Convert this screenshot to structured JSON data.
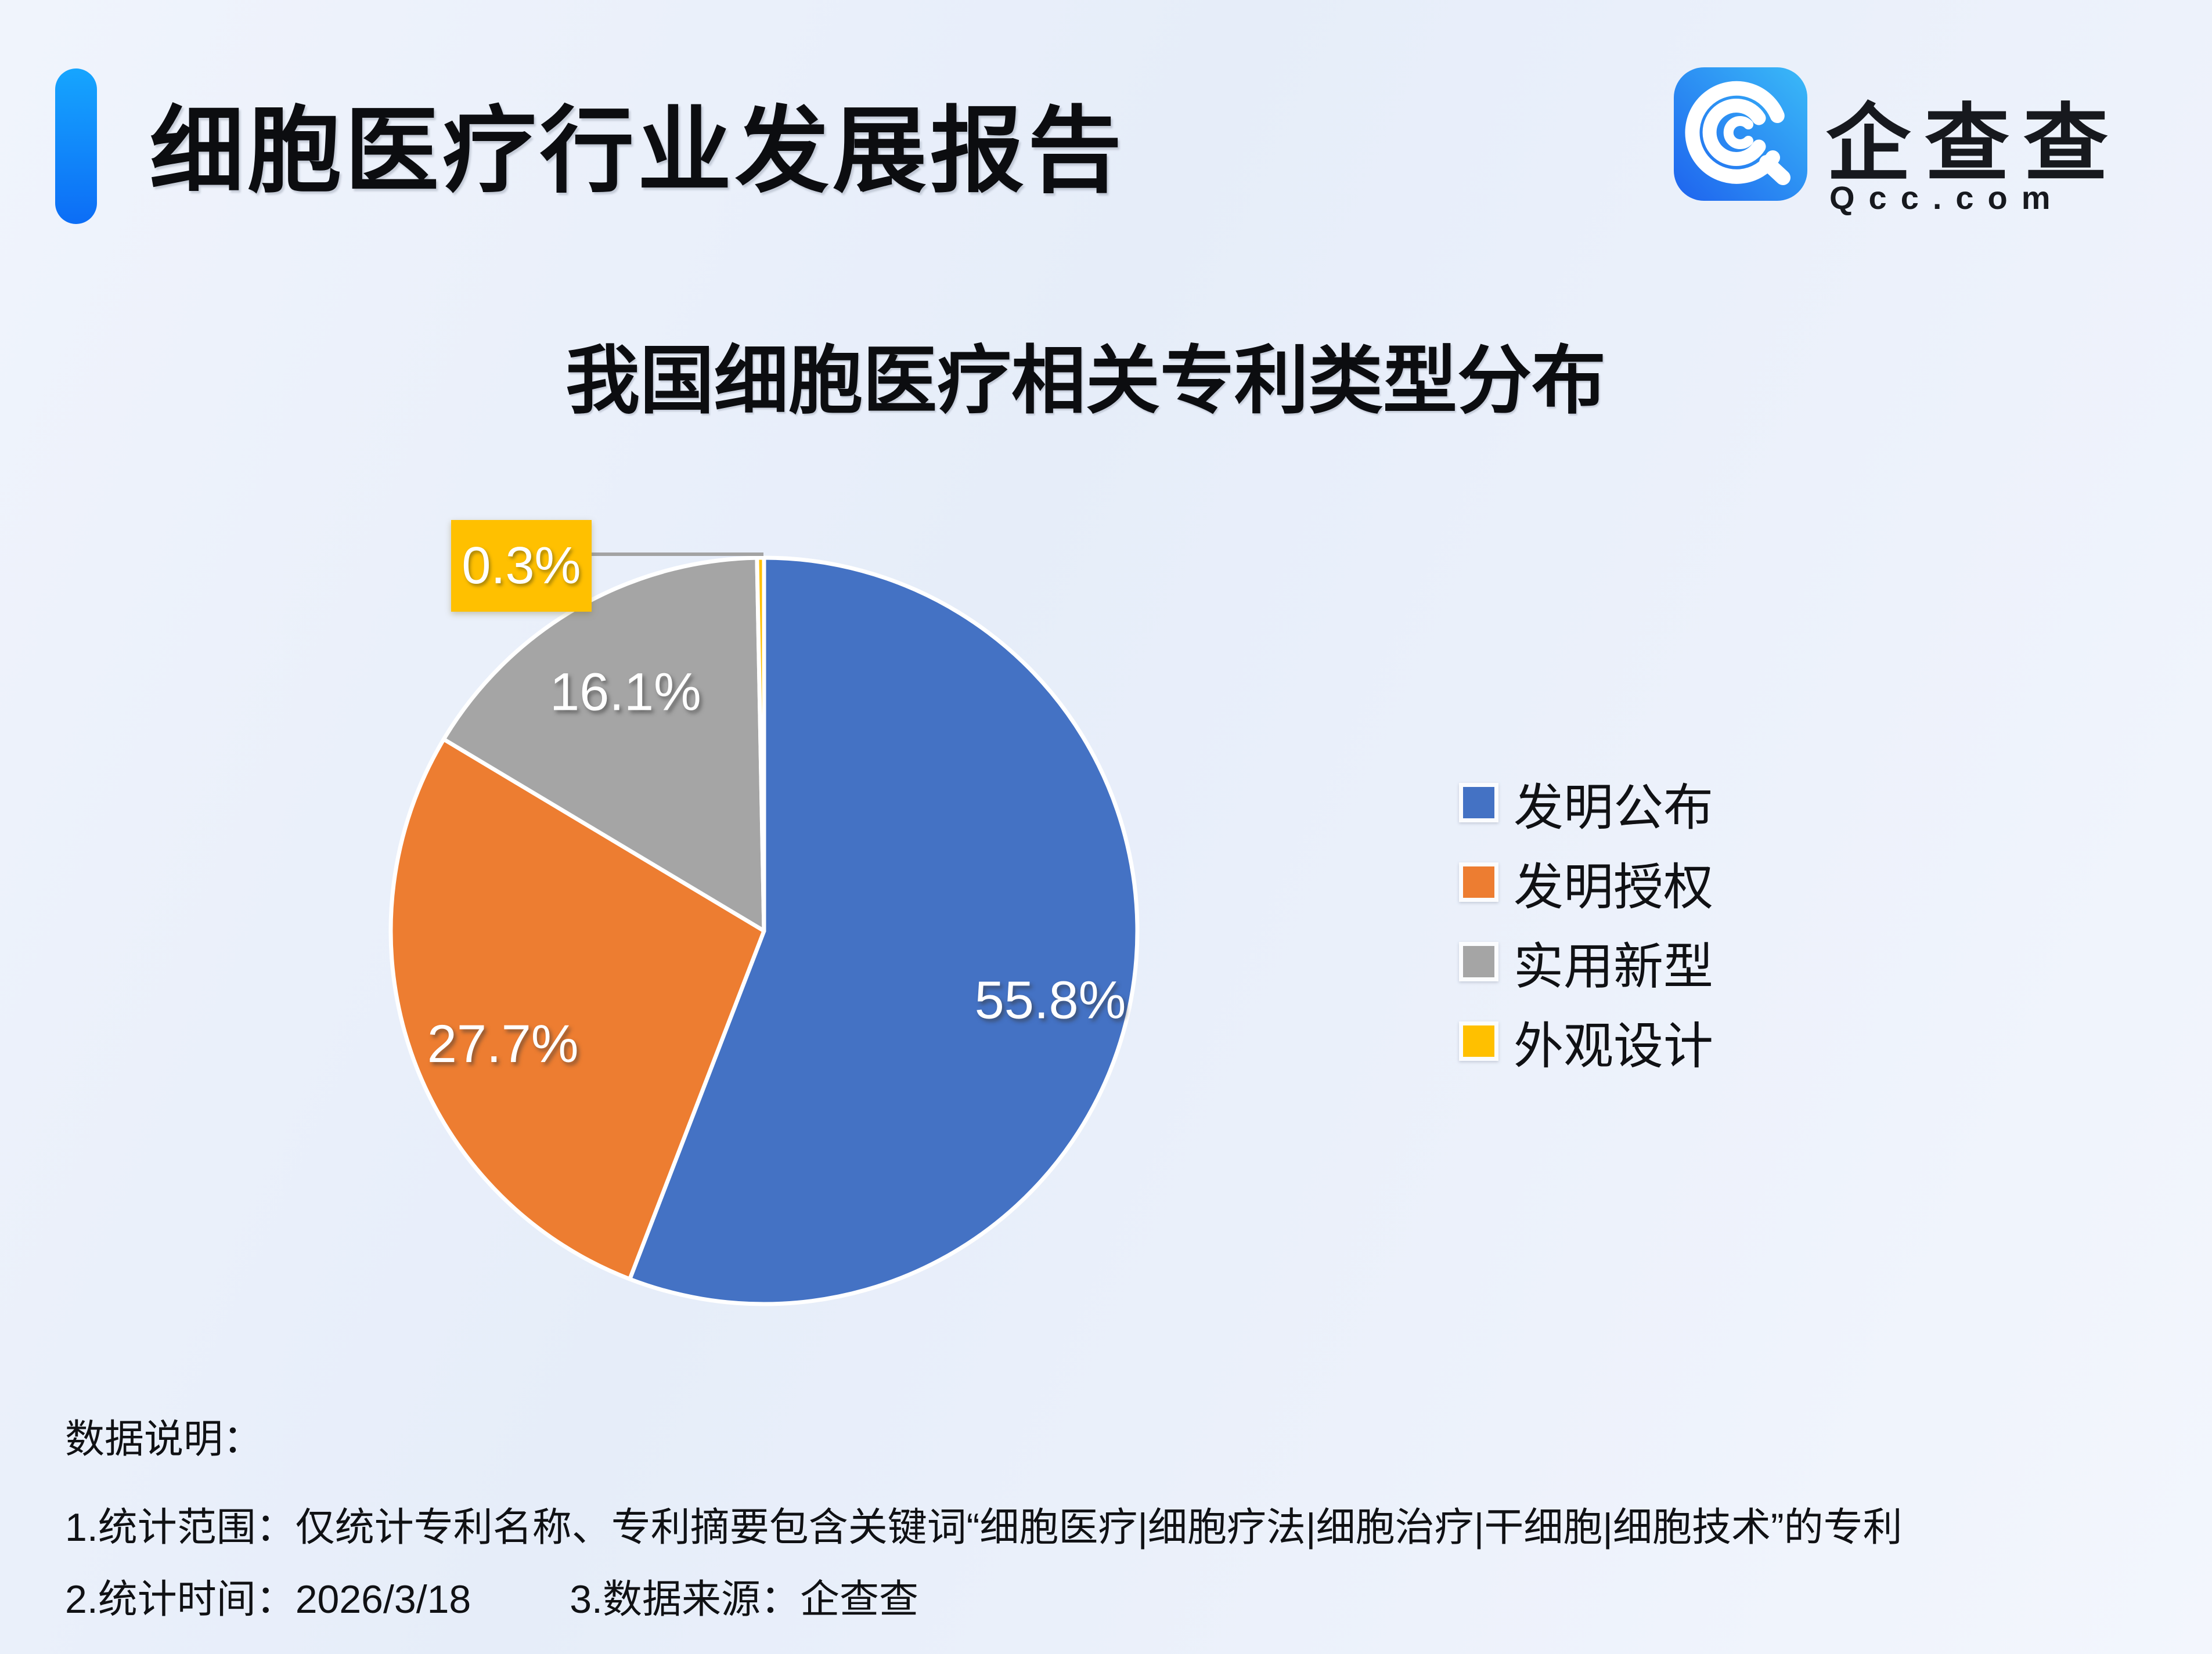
{
  "header": {
    "title": "细胞医疗行业发展报告",
    "accent_bar_top_color": "#16A5FE",
    "accent_bar_bottom_color": "#0C6DF6"
  },
  "logo": {
    "brand_name": "企查查",
    "brand_domain": "Qcc.com",
    "tile_gradient_left": "#1E63EE",
    "tile_gradient_right": "#3ABAF8"
  },
  "chart_data": {
    "type": "pie",
    "title": "我国细胞医疗相关专利类型分布",
    "unit": "percent",
    "direction": "clockwise",
    "start_angle_deg": 0,
    "legend_position": "right",
    "slice_border_color": "#FFFFFF",
    "series": [
      {
        "label": "发明公布",
        "value": 55.8,
        "display": "55.8%",
        "color": "#4472C4"
      },
      {
        "label": "发明授权",
        "value": 27.7,
        "display": "27.7%",
        "color": "#ED7D31"
      },
      {
        "label": "实用新型",
        "value": 16.1,
        "display": "16.1%",
        "color": "#A5A5A5"
      },
      {
        "label": "外观设计",
        "value": 0.3,
        "display": "0.3%",
        "color": "#FFC000",
        "callout": true
      }
    ]
  },
  "notes": {
    "heading": "数据说明：",
    "line1": "1.统计范围：仅统计专利名称、专利摘要包含关键词“细胞医疗|细胞疗法|细胞治疗|干细胞|细胞技术”的专利",
    "line2a": "2.统计时间：2026/3/18",
    "line2b": "3.数据来源：企查查"
  }
}
